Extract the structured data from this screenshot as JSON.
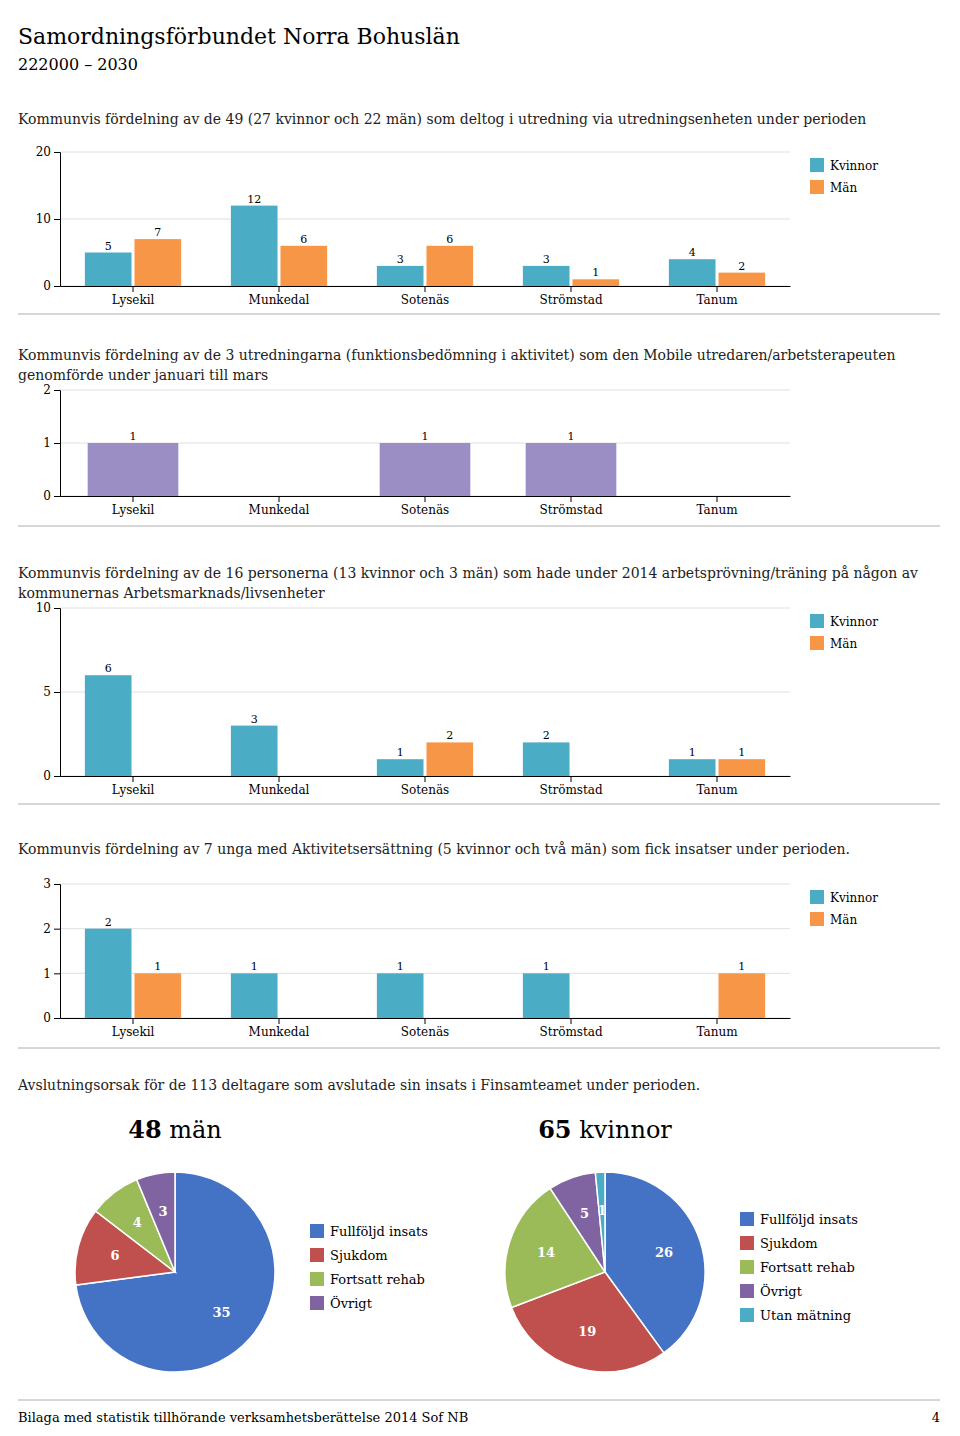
{
  "title": "Samordningsförbundet Norra Bohuslän",
  "subtitle": "222000 – 2030",
  "annotations": [
    "Avslutningsorsak för de 113 deltagare som avslutade sin insats i Finsamteamet under perioden.",
    "Bilaga med statistik tillhörande verksamhetsberättelse 2014 Sof NB",
    "4"
  ],
  "chart_data": [
    {
      "type": "bar",
      "title": "Kommunvis fördelning av de 49 (27 kvinnor och 22 män) som deltog i utredning via utredningsenheten under perioden",
      "categories": [
        "Lysekil",
        "Munkedal",
        "Sotenäs",
        "Strömstad",
        "Tanum"
      ],
      "series": [
        {
          "name": "Kvinnor",
          "color": "#4bacc6",
          "values": [
            5,
            12,
            3,
            3,
            4
          ]
        },
        {
          "name": "Män",
          "color": "#f79646",
          "values": [
            7,
            6,
            6,
            1,
            2
          ]
        }
      ],
      "ylim": [
        0,
        20
      ],
      "yticks": [
        0,
        10,
        20
      ],
      "grid": true,
      "legend": "right",
      "data_labels": true
    },
    {
      "type": "bar",
      "title": "Kommunvis fördelning av de 3 utredningarna (funktionsbedömning i aktivitet) som den Mobile utredaren/arbetsterapeuten genomförde under januari till mars",
      "categories": [
        "Lysekil",
        "Munkedal",
        "Sotenäs",
        "Strömstad",
        "Tanum"
      ],
      "values": [
        1,
        0,
        1,
        1,
        0
      ],
      "color": "#9b8ec4",
      "ylim": [
        0,
        2
      ],
      "yticks": [
        0,
        1,
        2
      ],
      "grid": true,
      "data_labels": true
    },
    {
      "type": "bar",
      "title": "Kommunvis fördelning av de 16 personerna (13 kvinnor och 3 män) som hade under 2014 arbetsprövning/träning på någon av kommunernas Arbetsmarknads/livsenheter",
      "categories": [
        "Lysekil",
        "Munkedal",
        "Sotenäs",
        "Strömstad",
        "Tanum"
      ],
      "series": [
        {
          "name": "Kvinnor",
          "color": "#4bacc6",
          "values": [
            6,
            3,
            1,
            2,
            1
          ]
        },
        {
          "name": "Män",
          "color": "#f79646",
          "values": [
            0,
            0,
            2,
            0,
            1
          ]
        }
      ],
      "ylim": [
        0,
        10
      ],
      "yticks": [
        0,
        5,
        10
      ],
      "grid": true,
      "legend": "right",
      "data_labels": true
    },
    {
      "type": "bar",
      "title": "Kommunvis fördelning av 7 unga med Aktivitetsersättning (5 kvinnor och två män) som fick insatser under perioden.",
      "categories": [
        "Lysekil",
        "Munkedal",
        "Sotenäs",
        "Strömstad",
        "Tanum"
      ],
      "series": [
        {
          "name": "Kvinnor",
          "color": "#4bacc6",
          "values": [
            2,
            1,
            1,
            1,
            0
          ]
        },
        {
          "name": "Män",
          "color": "#f79646",
          "values": [
            1,
            0,
            0,
            0,
            1
          ]
        }
      ],
      "ylim": [
        0,
        3
      ],
      "yticks": [
        0,
        1,
        2,
        3
      ],
      "grid": true,
      "legend": "right",
      "data_labels": true
    },
    {
      "type": "pie",
      "title": "48 män",
      "categories": [
        "Fullföljd insats",
        "Sjukdom",
        "Fortsatt rehab",
        "Övrigt"
      ],
      "values": [
        35,
        6,
        4,
        3
      ],
      "colors": [
        "#4472c4",
        "#c0504d",
        "#9bbb59",
        "#8064a2"
      ],
      "legend": "right",
      "data_labels": true
    },
    {
      "type": "pie",
      "title": "65 kvinnor",
      "categories": [
        "Fullföljd insats",
        "Sjukdom",
        "Fortsatt rehab",
        "Övrigt",
        "Utan mätning"
      ],
      "values": [
        26,
        19,
        14,
        5,
        1
      ],
      "colors": [
        "#4472c4",
        "#c0504d",
        "#9bbb59",
        "#8064a2",
        "#4bacc6"
      ],
      "legend": "right",
      "data_labels": true
    }
  ]
}
